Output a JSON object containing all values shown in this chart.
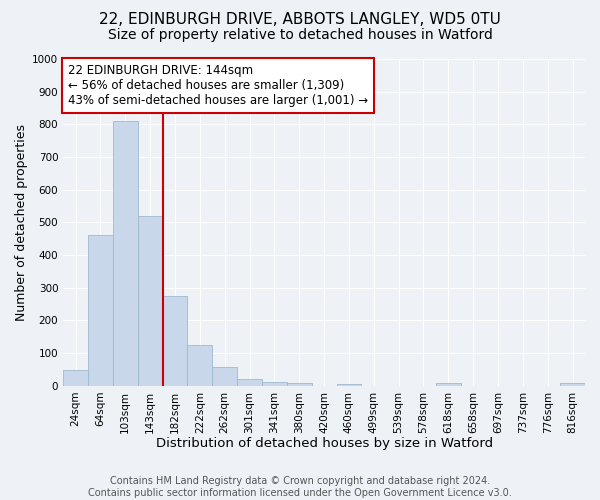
{
  "title": "22, EDINBURGH DRIVE, ABBOTS LANGLEY, WD5 0TU",
  "subtitle": "Size of property relative to detached houses in Watford",
  "xlabel": "Distribution of detached houses by size in Watford",
  "ylabel": "Number of detached properties",
  "bar_labels": [
    "24sqm",
    "64sqm",
    "103sqm",
    "143sqm",
    "182sqm",
    "222sqm",
    "262sqm",
    "301sqm",
    "341sqm",
    "380sqm",
    "420sqm",
    "460sqm",
    "499sqm",
    "539sqm",
    "578sqm",
    "618sqm",
    "658sqm",
    "697sqm",
    "737sqm",
    "776sqm",
    "816sqm"
  ],
  "bar_values": [
    47,
    460,
    810,
    520,
    275,
    125,
    58,
    22,
    12,
    10,
    0,
    5,
    0,
    0,
    0,
    10,
    0,
    0,
    0,
    0,
    10
  ],
  "bar_color": "#c8d8ea",
  "bar_edgecolor": "#a0b8d0",
  "vline_x_index": 3,
  "vline_color": "#cc0000",
  "annotation_title": "22 EDINBURGH DRIVE: 144sqm",
  "annotation_line1": "← 56% of detached houses are smaller (1,309)",
  "annotation_line2": "43% of semi-detached houses are larger (1,001) →",
  "annotation_box_color": "#ffffff",
  "annotation_border_color": "#cc0000",
  "ylim": [
    0,
    1000
  ],
  "yticks": [
    0,
    100,
    200,
    300,
    400,
    500,
    600,
    700,
    800,
    900,
    1000
  ],
  "background_color": "#eef2f7",
  "footer1": "Contains HM Land Registry data © Crown copyright and database right 2024.",
  "footer2": "Contains public sector information licensed under the Open Government Licence v3.0.",
  "title_fontsize": 11,
  "subtitle_fontsize": 10,
  "xlabel_fontsize": 9.5,
  "ylabel_fontsize": 9,
  "tick_fontsize": 7.5,
  "annotation_fontsize": 8.5,
  "footer_fontsize": 7
}
